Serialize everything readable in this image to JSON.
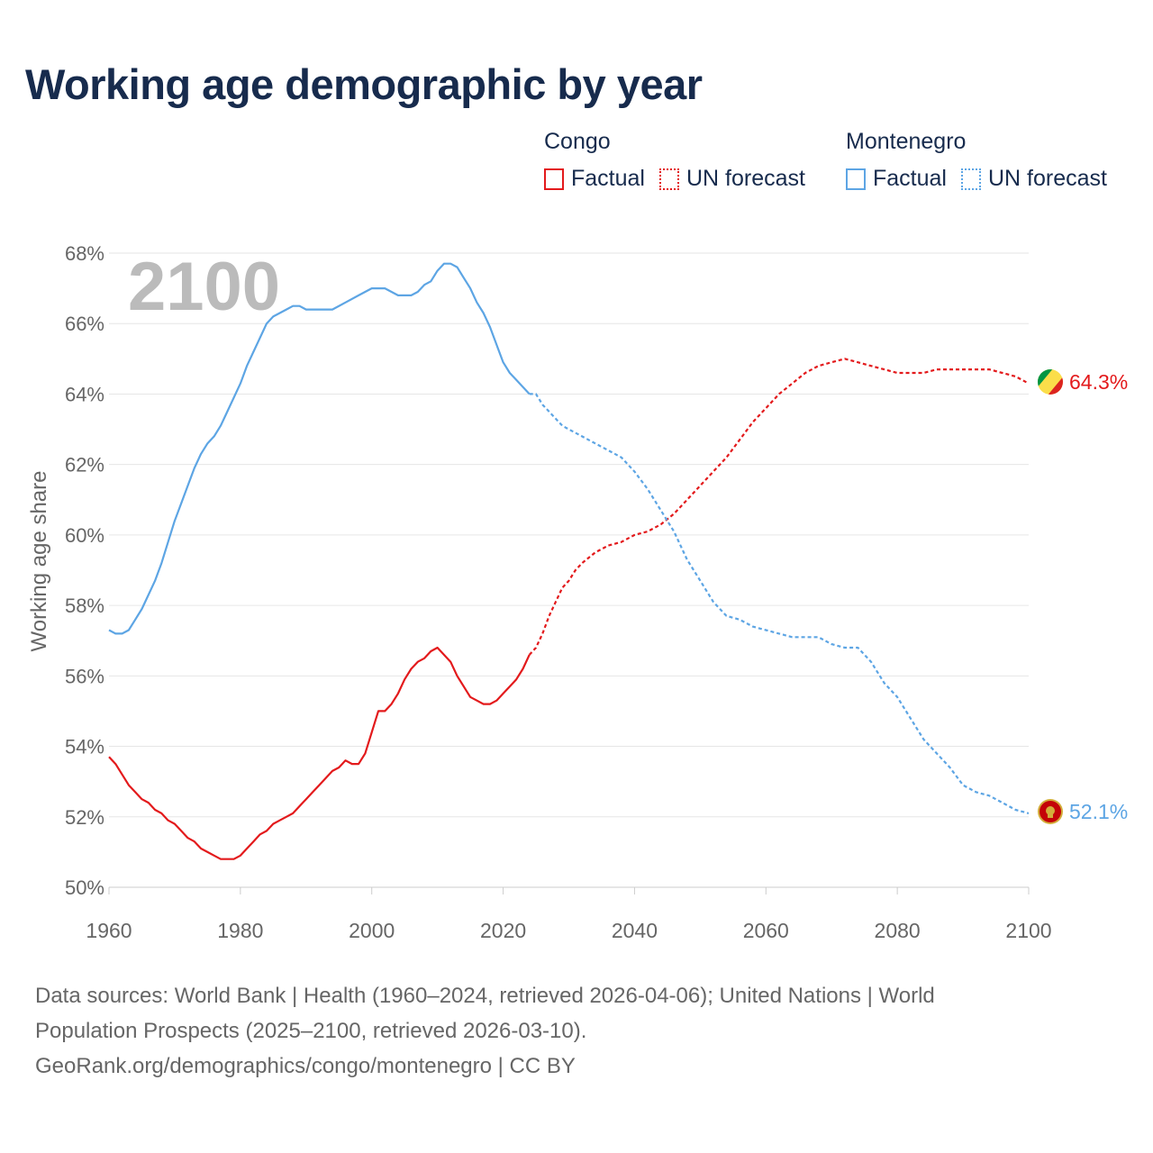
{
  "title": "Working age demographic by year",
  "legend": {
    "groups": [
      {
        "name": "Congo",
        "color": "#e31a1c",
        "factual_label": "Factual",
        "forecast_label": "UN forecast"
      },
      {
        "name": "Montenegro",
        "color": "#5da5e4",
        "factual_label": "Factual",
        "forecast_label": "UN forecast"
      }
    ]
  },
  "year_overlay": "2100",
  "end_labels": {
    "congo": "64.3%",
    "montenegro": "52.1%"
  },
  "footer": {
    "line1": "Data sources: World Bank | Health (1960–2024, retrieved 2026-04-06); United Nations | World",
    "line2": "Population Prospects (2025–2100, retrieved 2026-03-10).",
    "line3": "GeoRank.org/demographics/congo/montenegro | CC BY"
  },
  "chart_data": {
    "type": "line",
    "title": "Working age demographic by year",
    "xlabel": "",
    "ylabel": "Working age share",
    "xlim": [
      1960,
      2100
    ],
    "ylim": [
      50,
      68
    ],
    "x_ticks": [
      1960,
      1980,
      2000,
      2020,
      2040,
      2060,
      2080,
      2100
    ],
    "x_tick_labels": [
      "1960",
      "1980",
      "2000",
      "2020",
      "2040",
      "2060",
      "2080",
      "2100"
    ],
    "y_ticks": [
      50,
      52,
      54,
      56,
      58,
      60,
      62,
      64,
      66,
      68
    ],
    "y_tick_labels": [
      "50%",
      "52%",
      "54%",
      "56%",
      "58%",
      "60%",
      "62%",
      "64%",
      "66%",
      "68%"
    ],
    "factual_range": [
      1960,
      2024
    ],
    "forecast_range": [
      2024,
      2100
    ],
    "series": [
      {
        "name": "Congo",
        "color": "#e31a1c",
        "points": [
          [
            1960,
            53.7
          ],
          [
            1961,
            53.5
          ],
          [
            1962,
            53.2
          ],
          [
            1963,
            52.9
          ],
          [
            1964,
            52.7
          ],
          [
            1965,
            52.5
          ],
          [
            1966,
            52.4
          ],
          [
            1967,
            52.2
          ],
          [
            1968,
            52.1
          ],
          [
            1969,
            51.9
          ],
          [
            1970,
            51.8
          ],
          [
            1971,
            51.6
          ],
          [
            1972,
            51.4
          ],
          [
            1973,
            51.3
          ],
          [
            1974,
            51.1
          ],
          [
            1975,
            51.0
          ],
          [
            1976,
            50.9
          ],
          [
            1977,
            50.8
          ],
          [
            1978,
            50.8
          ],
          [
            1979,
            50.8
          ],
          [
            1980,
            50.9
          ],
          [
            1981,
            51.1
          ],
          [
            1982,
            51.3
          ],
          [
            1983,
            51.5
          ],
          [
            1984,
            51.6
          ],
          [
            1985,
            51.8
          ],
          [
            1986,
            51.9
          ],
          [
            1987,
            52.0
          ],
          [
            1988,
            52.1
          ],
          [
            1989,
            52.3
          ],
          [
            1990,
            52.5
          ],
          [
            1991,
            52.7
          ],
          [
            1992,
            52.9
          ],
          [
            1993,
            53.1
          ],
          [
            1994,
            53.3
          ],
          [
            1995,
            53.4
          ],
          [
            1996,
            53.6
          ],
          [
            1997,
            53.5
          ],
          [
            1998,
            53.5
          ],
          [
            1999,
            53.8
          ],
          [
            2000,
            54.4
          ],
          [
            2001,
            55.0
          ],
          [
            2002,
            55.0
          ],
          [
            2003,
            55.2
          ],
          [
            2004,
            55.5
          ],
          [
            2005,
            55.9
          ],
          [
            2006,
            56.2
          ],
          [
            2007,
            56.4
          ],
          [
            2008,
            56.5
          ],
          [
            2009,
            56.7
          ],
          [
            2010,
            56.8
          ],
          [
            2011,
            56.6
          ],
          [
            2012,
            56.4
          ],
          [
            2013,
            56.0
          ],
          [
            2014,
            55.7
          ],
          [
            2015,
            55.4
          ],
          [
            2016,
            55.3
          ],
          [
            2017,
            55.2
          ],
          [
            2018,
            55.2
          ],
          [
            2019,
            55.3
          ],
          [
            2020,
            55.5
          ],
          [
            2021,
            55.7
          ],
          [
            2022,
            55.9
          ],
          [
            2023,
            56.2
          ],
          [
            2024,
            56.6
          ],
          [
            2025,
            56.8
          ],
          [
            2026,
            57.2
          ],
          [
            2027,
            57.7
          ],
          [
            2028,
            58.1
          ],
          [
            2029,
            58.5
          ],
          [
            2030,
            58.7
          ],
          [
            2031,
            59.0
          ],
          [
            2032,
            59.2
          ],
          [
            2034,
            59.5
          ],
          [
            2036,
            59.7
          ],
          [
            2038,
            59.8
          ],
          [
            2040,
            60.0
          ],
          [
            2042,
            60.1
          ],
          [
            2044,
            60.3
          ],
          [
            2046,
            60.6
          ],
          [
            2048,
            61.0
          ],
          [
            2050,
            61.4
          ],
          [
            2052,
            61.8
          ],
          [
            2054,
            62.2
          ],
          [
            2056,
            62.7
          ],
          [
            2058,
            63.2
          ],
          [
            2060,
            63.6
          ],
          [
            2062,
            64.0
          ],
          [
            2064,
            64.3
          ],
          [
            2066,
            64.6
          ],
          [
            2068,
            64.8
          ],
          [
            2070,
            64.9
          ],
          [
            2072,
            65.0
          ],
          [
            2074,
            64.9
          ],
          [
            2076,
            64.8
          ],
          [
            2078,
            64.7
          ],
          [
            2080,
            64.6
          ],
          [
            2084,
            64.6
          ],
          [
            2086,
            64.7
          ],
          [
            2090,
            64.7
          ],
          [
            2094,
            64.7
          ],
          [
            2096,
            64.6
          ],
          [
            2098,
            64.5
          ],
          [
            2100,
            64.3
          ]
        ]
      },
      {
        "name": "Montenegro",
        "color": "#5da5e4",
        "points": [
          [
            1960,
            57.3
          ],
          [
            1961,
            57.2
          ],
          [
            1962,
            57.2
          ],
          [
            1963,
            57.3
          ],
          [
            1964,
            57.6
          ],
          [
            1965,
            57.9
          ],
          [
            1966,
            58.3
          ],
          [
            1967,
            58.7
          ],
          [
            1968,
            59.2
          ],
          [
            1969,
            59.8
          ],
          [
            1970,
            60.4
          ],
          [
            1971,
            60.9
          ],
          [
            1972,
            61.4
          ],
          [
            1973,
            61.9
          ],
          [
            1974,
            62.3
          ],
          [
            1975,
            62.6
          ],
          [
            1976,
            62.8
          ],
          [
            1977,
            63.1
          ],
          [
            1978,
            63.5
          ],
          [
            1979,
            63.9
          ],
          [
            1980,
            64.3
          ],
          [
            1981,
            64.8
          ],
          [
            1982,
            65.2
          ],
          [
            1983,
            65.6
          ],
          [
            1984,
            66.0
          ],
          [
            1985,
            66.2
          ],
          [
            1986,
            66.3
          ],
          [
            1987,
            66.4
          ],
          [
            1988,
            66.5
          ],
          [
            1989,
            66.5
          ],
          [
            1990,
            66.4
          ],
          [
            1992,
            66.4
          ],
          [
            1994,
            66.4
          ],
          [
            1996,
            66.6
          ],
          [
            1998,
            66.8
          ],
          [
            2000,
            67.0
          ],
          [
            2002,
            67.0
          ],
          [
            2004,
            66.8
          ],
          [
            2006,
            66.8
          ],
          [
            2007,
            66.9
          ],
          [
            2008,
            67.1
          ],
          [
            2009,
            67.2
          ],
          [
            2010,
            67.5
          ],
          [
            2011,
            67.7
          ],
          [
            2012,
            67.7
          ],
          [
            2013,
            67.6
          ],
          [
            2014,
            67.3
          ],
          [
            2015,
            67.0
          ],
          [
            2016,
            66.6
          ],
          [
            2017,
            66.3
          ],
          [
            2018,
            65.9
          ],
          [
            2019,
            65.4
          ],
          [
            2020,
            64.9
          ],
          [
            2021,
            64.6
          ],
          [
            2022,
            64.4
          ],
          [
            2023,
            64.2
          ],
          [
            2024,
            64.0
          ],
          [
            2025,
            64.0
          ],
          [
            2026,
            63.7
          ],
          [
            2027,
            63.5
          ],
          [
            2028,
            63.3
          ],
          [
            2029,
            63.1
          ],
          [
            2030,
            63.0
          ],
          [
            2032,
            62.8
          ],
          [
            2034,
            62.6
          ],
          [
            2036,
            62.4
          ],
          [
            2038,
            62.2
          ],
          [
            2040,
            61.8
          ],
          [
            2042,
            61.3
          ],
          [
            2044,
            60.7
          ],
          [
            2046,
            60.1
          ],
          [
            2048,
            59.3
          ],
          [
            2050,
            58.7
          ],
          [
            2052,
            58.1
          ],
          [
            2054,
            57.7
          ],
          [
            2056,
            57.6
          ],
          [
            2058,
            57.4
          ],
          [
            2060,
            57.3
          ],
          [
            2062,
            57.2
          ],
          [
            2064,
            57.1
          ],
          [
            2068,
            57.1
          ],
          [
            2070,
            56.9
          ],
          [
            2072,
            56.8
          ],
          [
            2074,
            56.8
          ],
          [
            2076,
            56.4
          ],
          [
            2078,
            55.8
          ],
          [
            2080,
            55.4
          ],
          [
            2082,
            54.8
          ],
          [
            2084,
            54.2
          ],
          [
            2086,
            53.8
          ],
          [
            2088,
            53.4
          ],
          [
            2090,
            52.9
          ],
          [
            2092,
            52.7
          ],
          [
            2094,
            52.6
          ],
          [
            2096,
            52.4
          ],
          [
            2098,
            52.2
          ],
          [
            2100,
            52.1
          ]
        ]
      }
    ]
  }
}
